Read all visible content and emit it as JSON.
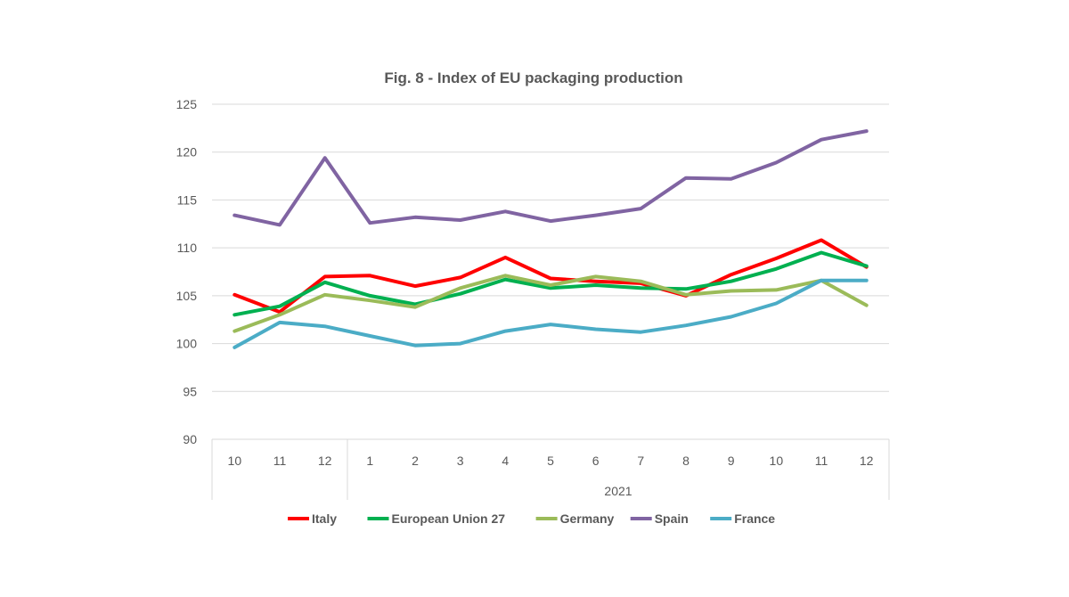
{
  "chart_data": {
    "type": "line",
    "title": "Fig. 8 - Index of EU packaging production",
    "xlabel": "",
    "ylabel": "",
    "categories": [
      "10",
      "11",
      "12",
      "1",
      "2",
      "3",
      "4",
      "5",
      "6",
      "7",
      "8",
      "9",
      "10",
      "11",
      "12"
    ],
    "group_labels": [
      {
        "label": "",
        "from": 0,
        "to": 2
      },
      {
        "label": "2021",
        "from": 3,
        "to": 14
      }
    ],
    "yticks": [
      "90",
      "95",
      "100",
      "105",
      "110",
      "115",
      "120",
      "125"
    ],
    "ylim": [
      90,
      125
    ],
    "grid": true,
    "legend_position": "bottom",
    "series": [
      {
        "name": "Italy",
        "color": "#ff0000",
        "values": [
          105.1,
          103.3,
          107.0,
          107.1,
          106.0,
          106.9,
          109.0,
          106.8,
          106.5,
          106.3,
          105.0,
          107.2,
          108.9,
          110.8,
          108.0
        ]
      },
      {
        "name": "European Union 27",
        "color": "#00b050",
        "values": [
          103.0,
          103.9,
          106.4,
          105.0,
          104.1,
          105.2,
          106.7,
          105.8,
          106.1,
          105.8,
          105.7,
          106.5,
          107.8,
          109.5,
          108.1
        ]
      },
      {
        "name": "Germany",
        "color": "#9bbb59",
        "values": [
          101.3,
          103.0,
          105.1,
          104.5,
          103.8,
          105.8,
          107.1,
          106.1,
          107.0,
          106.5,
          105.1,
          105.5,
          105.6,
          106.6,
          104.0
        ]
      },
      {
        "name": "Spain",
        "color": "#8064a2",
        "values": [
          113.4,
          112.4,
          119.4,
          112.6,
          113.2,
          112.9,
          113.8,
          112.8,
          113.4,
          114.1,
          117.3,
          117.2,
          118.9,
          121.3,
          122.2
        ]
      },
      {
        "name": "France",
        "color": "#4bacc6",
        "values": [
          99.6,
          102.2,
          101.8,
          100.8,
          99.8,
          100.0,
          101.3,
          102.0,
          101.5,
          101.2,
          101.9,
          102.8,
          104.2,
          106.6,
          106.6
        ]
      }
    ]
  }
}
